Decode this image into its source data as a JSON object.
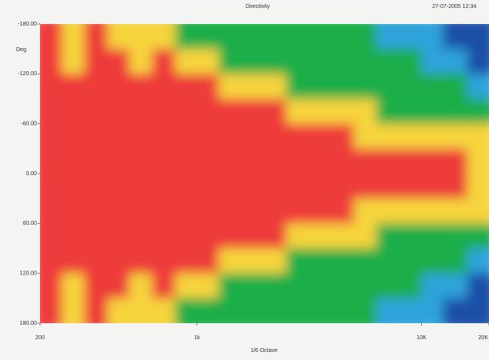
{
  "chart_data": {
    "type": "heatmap",
    "title": "Directivity",
    "timestamp": "27-07-2005 12:34",
    "ylabel": "Deg",
    "xlabel": "1/6 Octave",
    "xscale": "log",
    "yaxis_inverted": true,
    "xlim": [
      200,
      20000
    ],
    "ylim": [
      -180,
      180
    ],
    "xticks": [
      200,
      {
        "value": 1000,
        "label": "1k"
      },
      {
        "value": 10000,
        "label": "10K"
      },
      {
        "value": 20000,
        "label": "20K"
      }
    ],
    "yticks": [
      {
        "value": -180,
        "label": "-180.00"
      },
      {
        "value": -120,
        "label": "-120.00"
      },
      {
        "value": -60,
        "label": "-60.00"
      },
      {
        "value": 0,
        "label": "0.00"
      },
      {
        "value": 60,
        "label": "60.00"
      },
      {
        "value": 120,
        "label": "120.00"
      },
      {
        "value": 180,
        "label": "180.00"
      }
    ],
    "xbins": [
      200,
      250,
      315,
      400,
      500,
      630,
      800,
      1000,
      1250,
      1600,
      2000,
      2500,
      3150,
      4000,
      5000,
      6300,
      8000,
      10000,
      12500,
      16000,
      20000
    ],
    "ybins": [
      -180,
      -150,
      -120,
      -90,
      -60,
      -30,
      0,
      30,
      60,
      90,
      120,
      150,
      180
    ],
    "colors": [
      "#ee3b3b",
      "#f6d43c",
      "#1fae4a",
      "#2ea3da",
      "#1f4fa8"
    ],
    "z": [
      [
        0,
        1,
        0,
        1,
        1,
        1,
        2,
        2,
        2,
        2,
        2,
        2,
        2,
        2,
        2,
        3,
        3,
        3,
        4,
        4
      ],
      [
        0,
        1,
        0,
        0,
        1,
        0,
        1,
        1,
        2,
        2,
        2,
        2,
        2,
        2,
        2,
        2,
        2,
        3,
        3,
        4
      ],
      [
        0,
        0,
        0,
        0,
        0,
        0,
        0,
        0,
        1,
        1,
        1,
        2,
        2,
        2,
        2,
        2,
        2,
        2,
        2,
        3
      ],
      [
        0,
        0,
        0,
        0,
        0,
        0,
        0,
        0,
        0,
        0,
        0,
        1,
        1,
        1,
        1,
        2,
        2,
        2,
        2,
        2
      ],
      [
        0,
        0,
        0,
        0,
        0,
        0,
        0,
        0,
        0,
        0,
        0,
        0,
        0,
        0,
        1,
        1,
        1,
        1,
        1,
        1
      ],
      [
        0,
        0,
        0,
        0,
        0,
        0,
        0,
        0,
        0,
        0,
        0,
        0,
        0,
        0,
        0,
        0,
        0,
        0,
        0,
        1
      ],
      [
        0,
        0,
        0,
        0,
        0,
        0,
        0,
        0,
        0,
        0,
        0,
        0,
        0,
        0,
        0,
        0,
        0,
        0,
        0,
        1
      ],
      [
        0,
        0,
        0,
        0,
        0,
        0,
        0,
        0,
        0,
        0,
        0,
        0,
        0,
        0,
        1,
        1,
        1,
        1,
        1,
        1
      ],
      [
        0,
        0,
        0,
        0,
        0,
        0,
        0,
        0,
        0,
        0,
        0,
        1,
        1,
        1,
        1,
        2,
        2,
        2,
        2,
        2
      ],
      [
        0,
        0,
        0,
        0,
        0,
        0,
        0,
        0,
        1,
        1,
        1,
        2,
        2,
        2,
        2,
        2,
        2,
        2,
        2,
        3
      ],
      [
        0,
        1,
        0,
        0,
        1,
        0,
        1,
        1,
        2,
        2,
        2,
        2,
        2,
        2,
        2,
        2,
        2,
        3,
        3,
        4
      ],
      [
        0,
        1,
        0,
        1,
        1,
        1,
        2,
        2,
        2,
        2,
        2,
        2,
        2,
        2,
        2,
        3,
        3,
        3,
        4,
        4
      ]
    ]
  }
}
